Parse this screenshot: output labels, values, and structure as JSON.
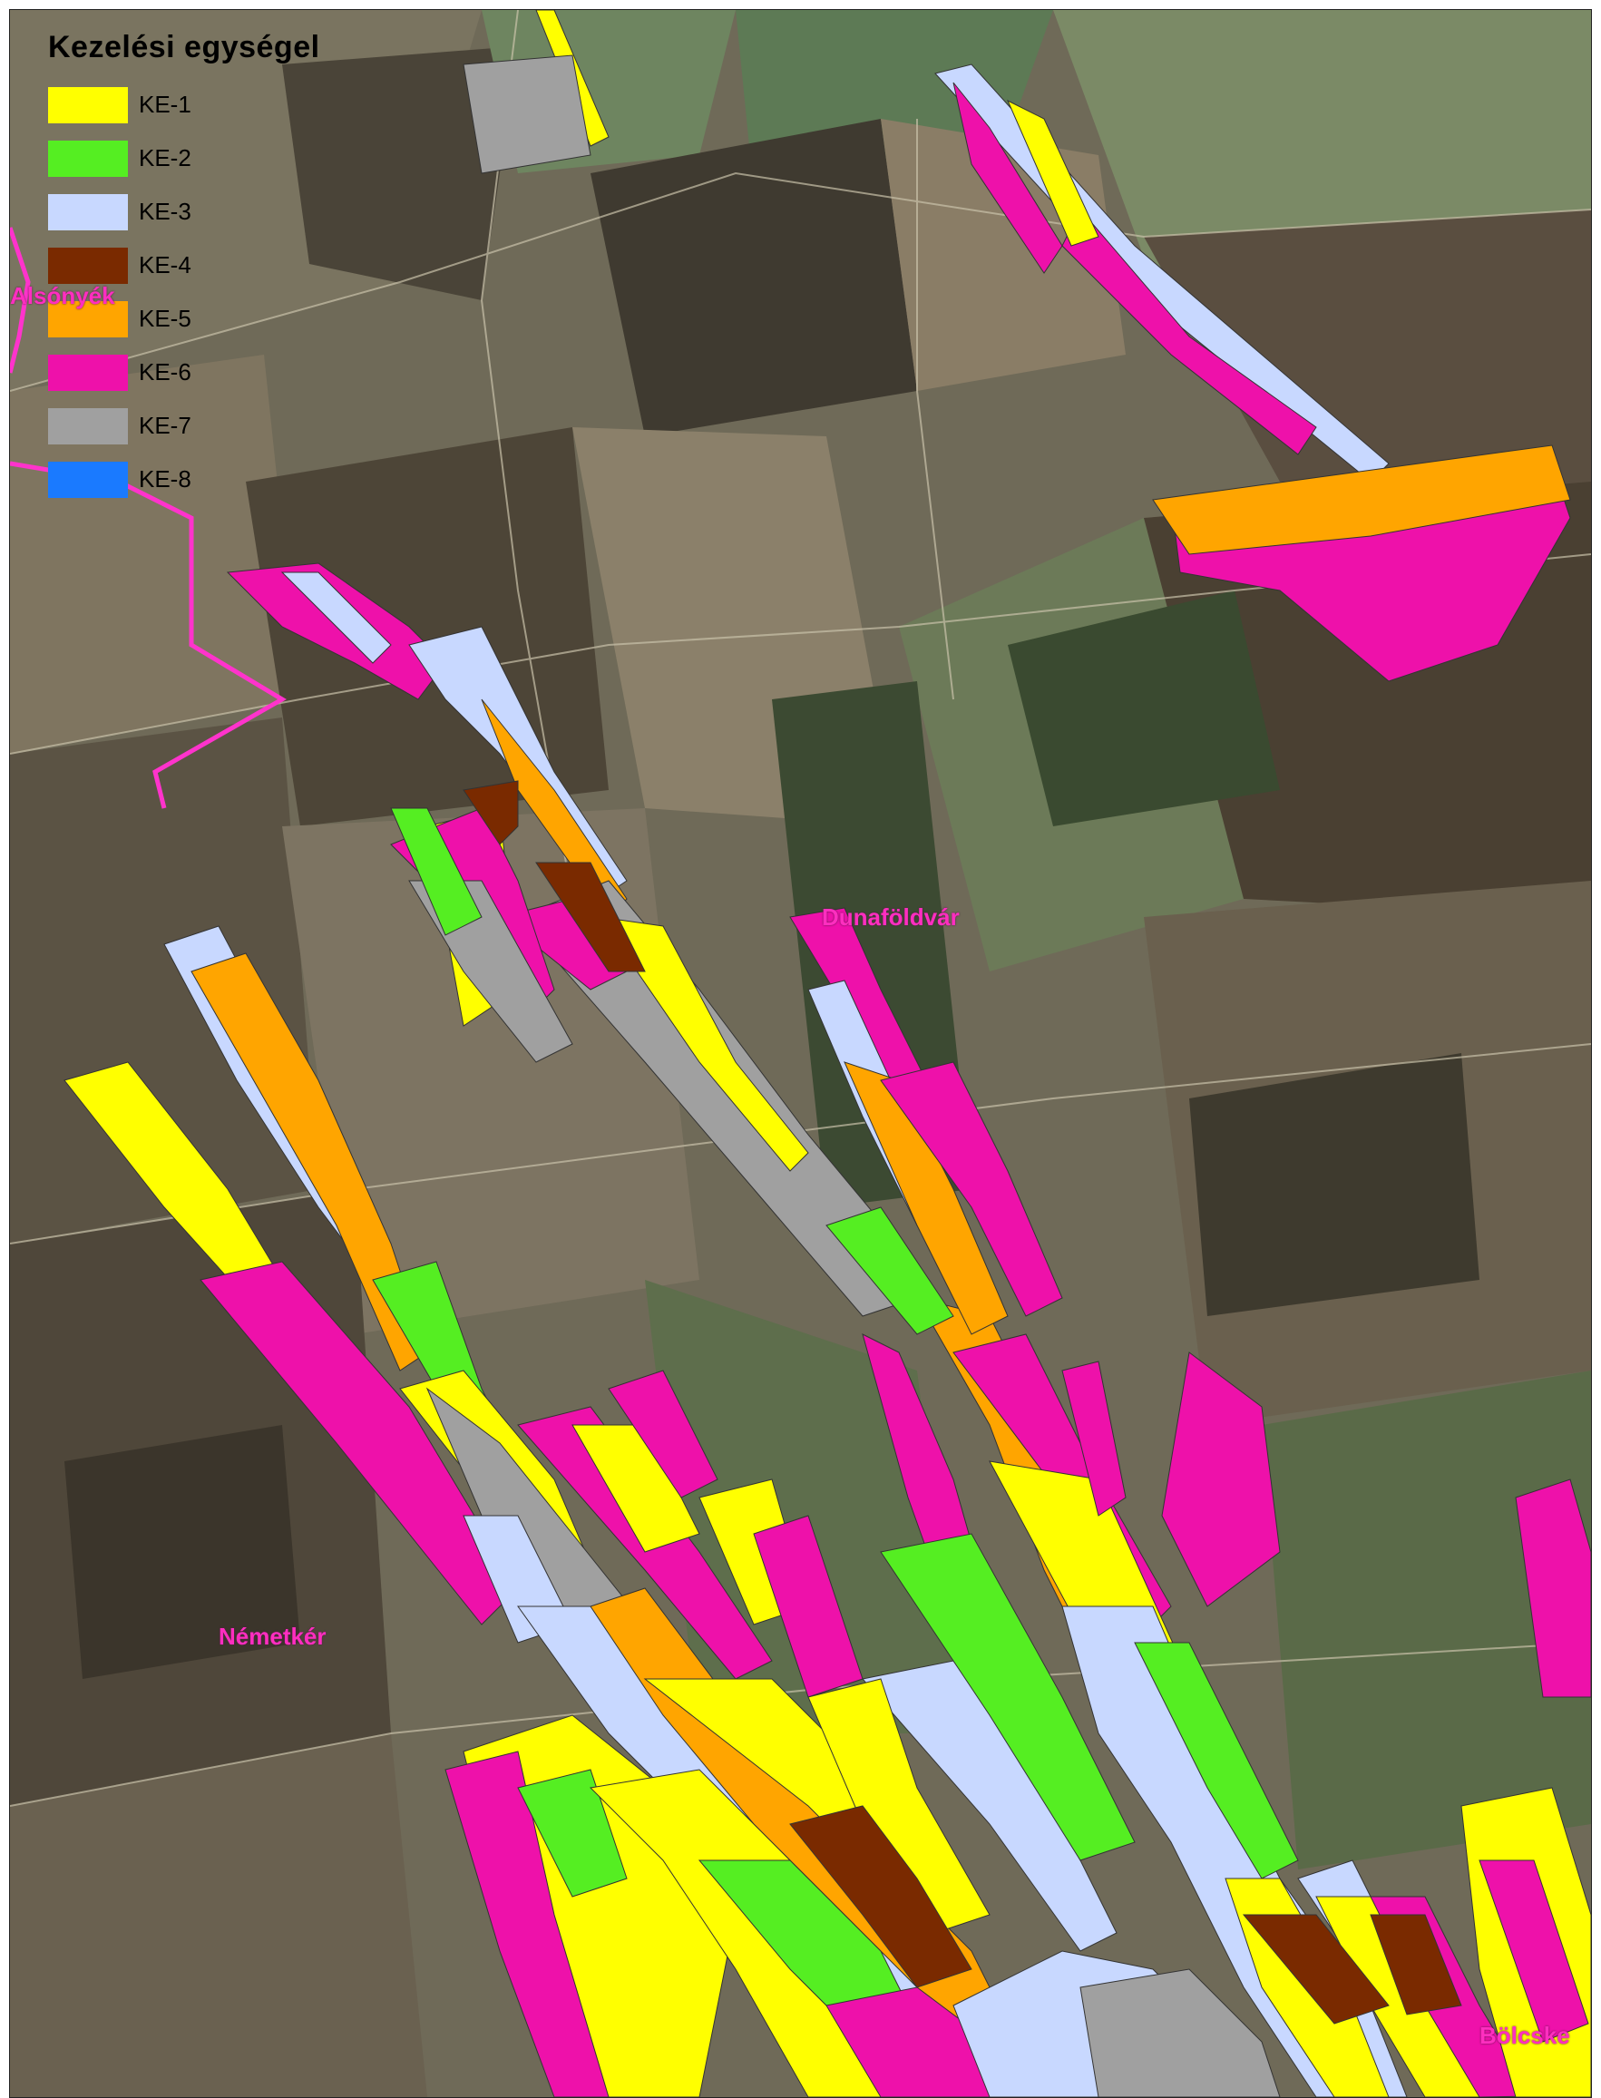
{
  "legend": {
    "title": "Kezelési egységel",
    "items": [
      {
        "label": "KE-1",
        "color": "#ffff00"
      },
      {
        "label": "KE-2",
        "color": "#55ee22"
      },
      {
        "label": "KE-3",
        "color": "#c8d8ff"
      },
      {
        "label": "KE-4",
        "color": "#7a2a00"
      },
      {
        "label": "KE-5",
        "color": "#ffa500"
      },
      {
        "label": "KE-6",
        "color": "#ee11aa"
      },
      {
        "label": "KE-7",
        "color": "#a0a0a0"
      },
      {
        "label": "KE-8",
        "color": "#1a7aff"
      }
    ]
  },
  "places": {
    "alsonyek": "Alsónyék",
    "dunafoldvar": "Dunaföldvár",
    "nemetker": "Németkér",
    "bolcske": "Bölcske"
  }
}
